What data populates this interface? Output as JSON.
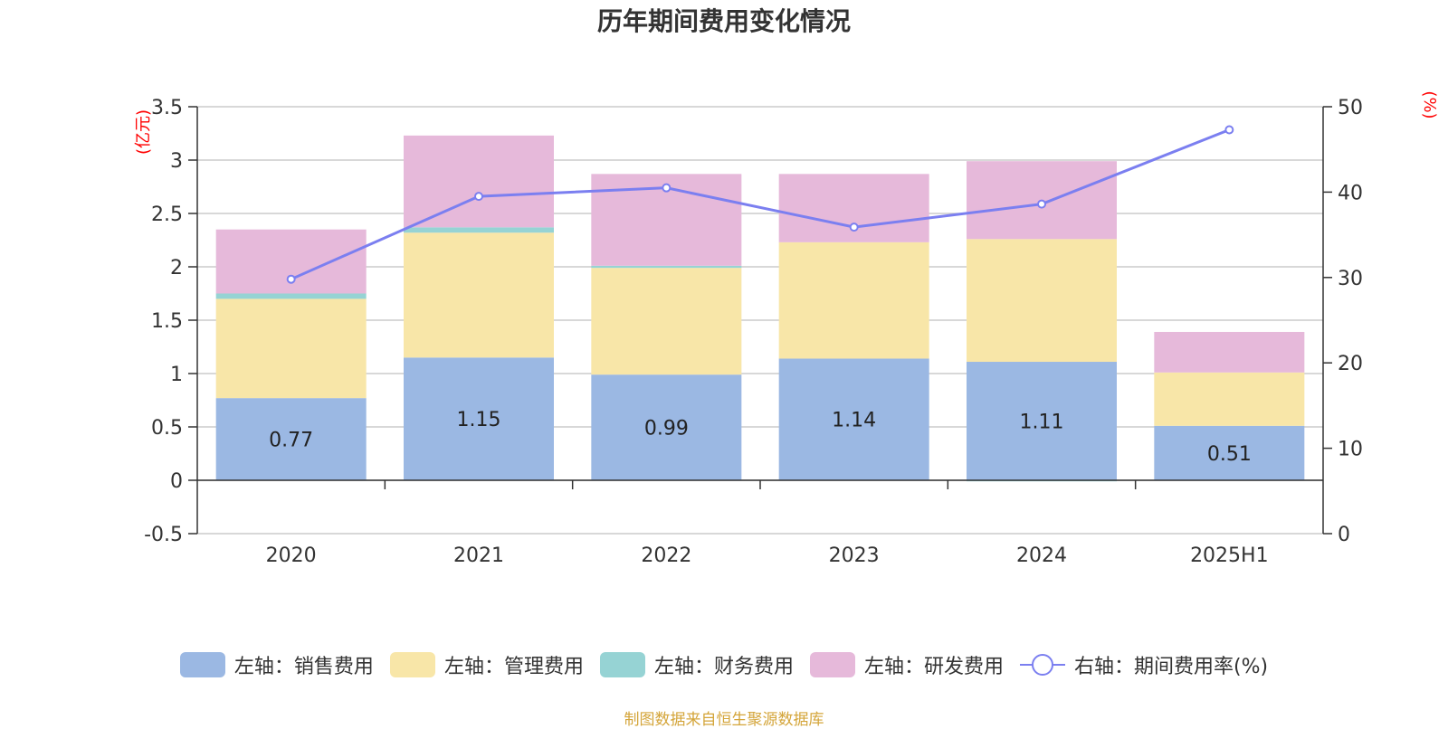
{
  "title": "历年期间费用变化情况",
  "source_note": "制图数据来自恒生聚源数据库",
  "colors": {
    "sales": "#9bb8e3",
    "admin": "#f8e6a8",
    "finance": "#96d3d4",
    "rnd": "#e6b9da",
    "rate_line": "#7b7ff0",
    "axis_unit": "#ff0000",
    "source": "#d4a53a",
    "grid": "#cccccc",
    "axis": "#333333",
    "text": "#333333"
  },
  "legend": [
    {
      "key": "sales",
      "label": "左轴：销售费用",
      "kind": "bar"
    },
    {
      "key": "admin",
      "label": "左轴：管理费用",
      "kind": "bar"
    },
    {
      "key": "finance",
      "label": "左轴：财务费用",
      "kind": "bar"
    },
    {
      "key": "rnd",
      "label": "左轴：研发费用",
      "kind": "bar"
    },
    {
      "key": "rate_line",
      "label": "右轴：期间费用率(%)",
      "kind": "line"
    }
  ],
  "chart_data": {
    "type": "bar",
    "title": "历年期间费用变化情况",
    "categories": [
      "2020",
      "2021",
      "2022",
      "2023",
      "2024",
      "2025H1"
    ],
    "left_axis": {
      "unit_label": "(亿元)",
      "ylim": [
        -0.5,
        3.5
      ],
      "ticks": [
        -0.5,
        0,
        0.5,
        1,
        1.5,
        2,
        2.5,
        3,
        3.5
      ],
      "tick_labels": [
        "-0.5",
        "0",
        "0.5",
        "1",
        "1.5",
        "2",
        "2.5",
        "3",
        "3.5"
      ]
    },
    "right_axis": {
      "unit_label": "(%)",
      "ylim": [
        0,
        50
      ],
      "ticks": [
        0,
        10,
        20,
        30,
        40,
        50
      ],
      "tick_labels": [
        "0",
        "10",
        "20",
        "30",
        "40",
        "50"
      ]
    },
    "stacked": true,
    "grid": true,
    "legend_position": "bottom",
    "series": [
      {
        "name": "左轴：销售费用",
        "key": "sales",
        "axis": "left",
        "type": "bar",
        "values": [
          0.77,
          1.15,
          0.99,
          1.14,
          1.11,
          0.51
        ],
        "labels": [
          "0.77",
          "1.15",
          "0.99",
          "1.14",
          "1.11",
          "0.51"
        ]
      },
      {
        "name": "左轴：管理费用",
        "key": "admin",
        "axis": "left",
        "type": "bar",
        "values": [
          0.93,
          1.17,
          1.0,
          1.09,
          1.15,
          0.5
        ]
      },
      {
        "name": "左轴：财务费用",
        "key": "finance",
        "axis": "left",
        "type": "bar",
        "values": [
          0.05,
          0.05,
          0.02,
          0.0,
          -0.01,
          0.0
        ]
      },
      {
        "name": "左轴：研发费用",
        "key": "rnd",
        "axis": "left",
        "type": "bar",
        "values": [
          0.6,
          0.86,
          0.86,
          0.64,
          0.73,
          0.38
        ]
      },
      {
        "name": "右轴：期间费用率(%)",
        "key": "rate_line",
        "axis": "right",
        "type": "line",
        "values": [
          29.8,
          39.5,
          40.5,
          35.9,
          38.6,
          47.3
        ]
      }
    ]
  }
}
